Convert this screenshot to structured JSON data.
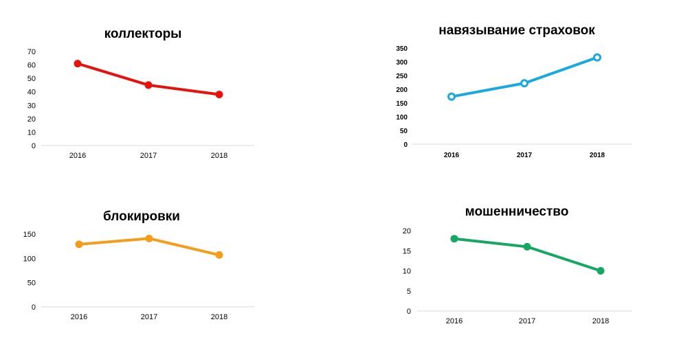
{
  "chart_data": [
    {
      "type": "line",
      "title": "коллекторы",
      "categories": [
        "2016",
        "2017",
        "2018"
      ],
      "values": [
        61,
        45,
        38
      ],
      "ylim": [
        0,
        70
      ],
      "yticks": [
        0,
        10,
        20,
        30,
        40,
        50,
        60,
        70
      ],
      "color": "#e8120c",
      "marker": "filled",
      "grid": false
    },
    {
      "type": "line",
      "title": "навязывание страховок",
      "categories": [
        "2016",
        "2017",
        "2018"
      ],
      "values": [
        173,
        222,
        316
      ],
      "ylim": [
        0,
        350
      ],
      "yticks": [
        0,
        50,
        100,
        150,
        200,
        250,
        300,
        350
      ],
      "color": "#19a9e1",
      "marker": "hollow",
      "grid": false
    },
    {
      "type": "line",
      "title": "блокировки",
      "categories": [
        "2016",
        "2017",
        "2018"
      ],
      "values": [
        129,
        141,
        107
      ],
      "ylim": [
        0,
        150
      ],
      "yticks": [
        0,
        50,
        100,
        150
      ],
      "color": "#f59d1a",
      "marker": "filled",
      "grid": false
    },
    {
      "type": "line",
      "title": "мошенничество",
      "categories": [
        "2016",
        "2017",
        "2018"
      ],
      "values": [
        18,
        16,
        10
      ],
      "ylim": [
        0,
        20
      ],
      "yticks": [
        0,
        5,
        10,
        15,
        20
      ],
      "color": "#14a862",
      "marker": "filled",
      "grid": false
    }
  ]
}
